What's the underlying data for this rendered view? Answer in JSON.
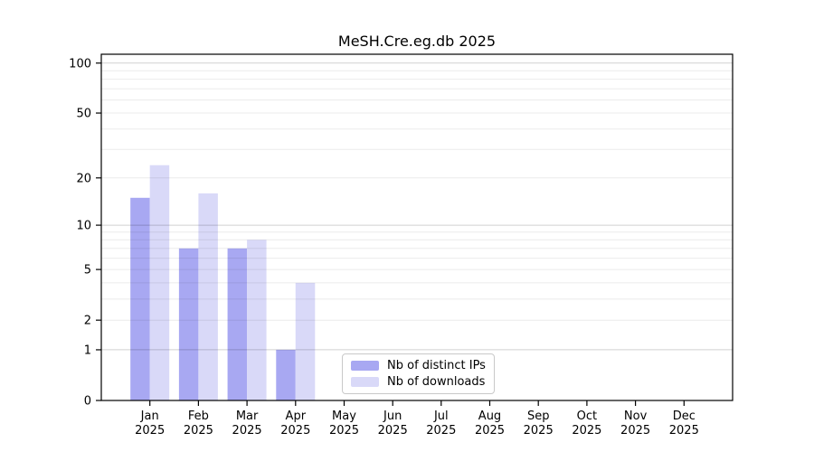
{
  "chart_data": {
    "type": "bar",
    "title": "MeSH.Cre.eg.db 2025",
    "categories": [
      "Jan 2025",
      "Feb 2025",
      "Mar 2025",
      "Apr 2025",
      "May 2025",
      "Jun 2025",
      "Jul 2025",
      "Aug 2025",
      "Sep 2025",
      "Oct 2025",
      "Nov 2025",
      "Dec 2025"
    ],
    "series": [
      {
        "name": "Nb of distinct IPs",
        "color": "#a8a8f2",
        "values": [
          15,
          7,
          7,
          1,
          0,
          0,
          0,
          0,
          0,
          0,
          0,
          0
        ]
      },
      {
        "name": "Nb of downloads",
        "color": "#d9d9f8",
        "values": [
          24,
          16,
          8,
          4,
          0,
          0,
          0,
          0,
          0,
          0,
          0,
          0
        ]
      }
    ],
    "xlabel": "",
    "ylabel": "",
    "yscale": "log1p",
    "ylim": [
      0,
      113
    ],
    "y_ticks": [
      0,
      1,
      2,
      5,
      10,
      20,
      50,
      100
    ],
    "minor_gridlines": [
      2,
      3,
      4,
      5,
      6,
      7,
      8,
      9,
      20,
      30,
      40,
      50,
      60,
      70,
      80,
      90
    ],
    "major_gridlines": [
      1,
      10,
      100
    ],
    "grid": true,
    "legend_position": "lower center",
    "colors": {
      "axis": "#000000",
      "text": "#000000",
      "gridline_minor": "rgba(0,0,0,0.08)",
      "gridline_major": "rgba(0,0,0,0.18)",
      "legend_border": "#c9c9c9",
      "background": "#ffffff"
    }
  }
}
